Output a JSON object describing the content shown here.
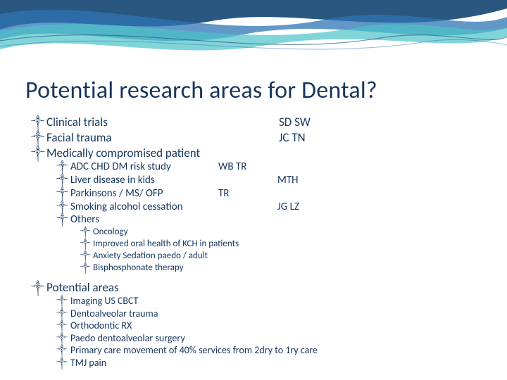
{
  "colors": {
    "text": "#17365d",
    "wave1": "#1f4e79",
    "wave2": "#2e74b5",
    "wave3": "#4cc3c9",
    "background": "#ffffff"
  },
  "title": "Potential research areas for Dental?",
  "bullet_glyph": "༒",
  "level1": [
    {
      "text": "Clinical trials",
      "annotation": "SD SW"
    },
    {
      "text": "Facial trauma",
      "annotation": "JC TN"
    },
    {
      "text": "Medically compromised patient",
      "annotation": ""
    }
  ],
  "level2": [
    {
      "text": "ADC CHD DM risk study",
      "col1": "WB TR",
      "col2": ""
    },
    {
      "text": "Liver disease in kids",
      "col1": "",
      "col2": "MTH"
    },
    {
      "text": "Parkinsons / MS/ OFP",
      "col1": "TR",
      "col2": ""
    },
    {
      "text": "Smoking alcohol cessation",
      "col1": "",
      "col2": "JG LZ"
    },
    {
      "text": "Others",
      "col1": "",
      "col2": ""
    }
  ],
  "level3": [
    {
      "text": "Oncology"
    },
    {
      "text": "Improved oral health of KCH in patients"
    },
    {
      "text": "Anxiety Sedation paedo / adult"
    },
    {
      "text": "Bisphosphonate therapy"
    }
  ],
  "potential_header": "Potential areas",
  "potential_items": [
    {
      "text": "Imaging US CBCT"
    },
    {
      "text": "Dentoalveolar trauma"
    },
    {
      "text": "Orthodontic RX"
    },
    {
      "text": "Paedo dentoalveolar surgery"
    },
    {
      "text": "Primary care movement of 40% services from 2dry to 1ry care"
    },
    {
      "text": "TMJ pain"
    }
  ]
}
